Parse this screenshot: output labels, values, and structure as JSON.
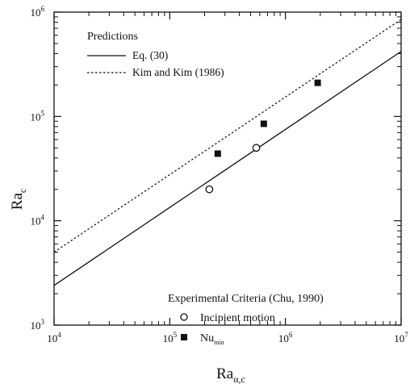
{
  "chart_data": {
    "type": "line",
    "xlabel": {
      "base": "Ra",
      "sub": "α,c"
    },
    "ylabel": {
      "base": "Ra",
      "sub": "c"
    },
    "x_scale": "log",
    "y_scale": "log",
    "xlim": [
      10000,
      10000000
    ],
    "ylim": [
      1000,
      1000000
    ],
    "grid": false,
    "x_ticks": [
      {
        "value": 10000,
        "base": "10",
        "exp": "4"
      },
      {
        "value": 100000,
        "base": "10",
        "exp": "5"
      },
      {
        "value": 1000000,
        "base": "10",
        "exp": "6"
      },
      {
        "value": 10000000,
        "base": "10",
        "exp": "7"
      }
    ],
    "y_ticks": [
      {
        "value": 1000,
        "base": "10",
        "exp": "3"
      },
      {
        "value": 10000,
        "base": "10",
        "exp": "4"
      },
      {
        "value": 100000,
        "base": "10",
        "exp": "5"
      },
      {
        "value": 1000000,
        "base": "10",
        "exp": "6"
      }
    ],
    "legend_predictions": {
      "title": "Predictions",
      "placement": "top-left"
    },
    "legend_experimental": {
      "title": "Experimental Criteria (Chu, 1990)",
      "placement": "bottom-right"
    },
    "series": [
      {
        "name": "Eq. (30)",
        "kind": "line",
        "style": "solid",
        "x": [
          10000,
          10000000
        ],
        "y": [
          2400,
          420000
        ]
      },
      {
        "name": "Kim and Kim (1986)",
        "kind": "line",
        "style": "dotted",
        "x": [
          10000,
          10000000
        ],
        "y": [
          5000,
          850000
        ]
      },
      {
        "name": "Incipient motion",
        "kind": "scatter",
        "marker": "open-circle",
        "x": [
          220000,
          560000
        ],
        "y": [
          20000,
          50000
        ]
      },
      {
        "name": {
          "base": "Nu",
          "sub": "min"
        },
        "kind": "scatter",
        "marker": "filled-square",
        "x": [
          260000,
          650000,
          1900000
        ],
        "y": [
          44000,
          85000,
          210000
        ]
      }
    ]
  }
}
